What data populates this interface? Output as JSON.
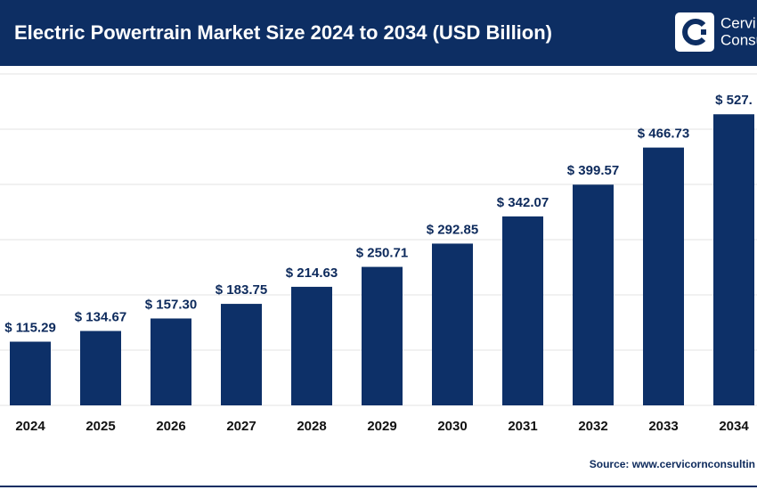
{
  "header": {
    "title": "Electric Powertrain Market Size 2024 to 2034 (USD Billion)",
    "logo_line1": "Cervi",
    "logo_line2": "Consu"
  },
  "chart_data": {
    "type": "bar",
    "categories": [
      "2024",
      "2025",
      "2026",
      "2027",
      "2028",
      "2029",
      "2030",
      "2031",
      "2032",
      "2033",
      "2034"
    ],
    "values": [
      115.29,
      134.67,
      157.3,
      183.75,
      214.63,
      250.71,
      292.85,
      342.07,
      399.57,
      466.73,
      527
    ],
    "value_labels": [
      "$ 115.29",
      "$ 134.67",
      "$ 157.30",
      "$ 183.75",
      "$ 214.63",
      "$ 250.71",
      "$ 292.85",
      "$ 342.07",
      "$ 399.57",
      "$ 466.73",
      "$ 527."
    ],
    "color": "#0d3068",
    "ylim": [
      0,
      600
    ],
    "yticks": [
      0,
      100,
      200,
      300,
      400,
      500,
      600
    ],
    "grid": true
  },
  "source": "Source: www.cervicornconsultin"
}
